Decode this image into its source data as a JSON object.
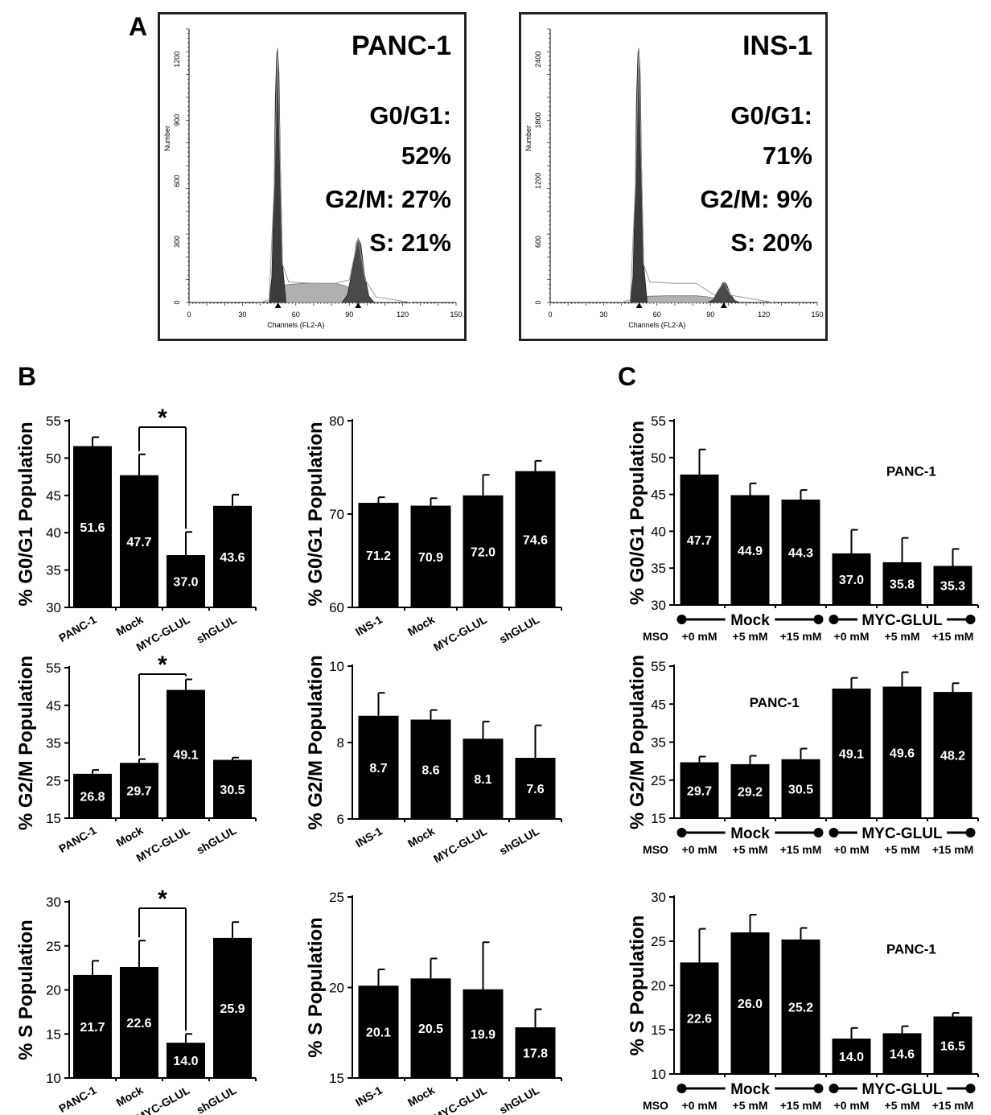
{
  "panels": {
    "A": "A",
    "B": "B",
    "C": "C"
  },
  "histograms": [
    {
      "title": "PANC-1",
      "lines": [
        "G0/G1:",
        "52%",
        "G2/M: 27%",
        "S: 21%"
      ],
      "xticks": [
        "0",
        "30",
        "60",
        "90",
        "120",
        "150"
      ],
      "yticks": [
        "0",
        "300",
        "600",
        "900",
        "1200"
      ],
      "xlabel": "Channels (FL2-A)",
      "ylabel": "Number",
      "ymax": 1350
    },
    {
      "title": "INS-1",
      "lines": [
        "G0/G1:",
        "71%",
        "G2/M: 9%",
        "S: 20%"
      ],
      "xticks": [
        "0",
        "30",
        "60",
        "90",
        "120",
        "150"
      ],
      "yticks": [
        "0",
        "600",
        "1200",
        "1800",
        "2400"
      ],
      "xlabel": "Channels (FL2-A)",
      "ylabel": "Number",
      "ymax": 2700
    }
  ],
  "chart_data": [
    {
      "id": "B1",
      "type": "bar",
      "ylabel": "% G0/G1 Population",
      "ylim": [
        30,
        55
      ],
      "yticks": [
        30,
        35,
        40,
        45,
        50,
        55
      ],
      "categories": [
        "PANC-1",
        "Mock",
        "MYC-GLUL",
        "shGLUL"
      ],
      "values": [
        51.6,
        47.7,
        37.0,
        43.6
      ],
      "errors": [
        1.2,
        2.8,
        3.1,
        1.5
      ],
      "significance": {
        "from": 1,
        "to": 2,
        "label": "*"
      }
    },
    {
      "id": "B2",
      "type": "bar",
      "ylabel": "% G0/G1 Population",
      "ylim": [
        60,
        80
      ],
      "yticks": [
        60,
        70,
        80
      ],
      "categories": [
        "INS-1",
        "Mock",
        "MYC-GLUL",
        "shGLUL"
      ],
      "values": [
        71.2,
        70.9,
        72.0,
        74.6
      ],
      "errors": [
        0.6,
        0.8,
        2.2,
        1.1
      ]
    },
    {
      "id": "C1",
      "type": "bar",
      "ylabel": "% G0/G1 Population",
      "ylim": [
        30,
        55
      ],
      "yticks": [
        30,
        35,
        40,
        45,
        50,
        55
      ],
      "categories": [
        "+0 mM",
        "+5 mM",
        "+15 mM",
        "+0 mM",
        "+5 mM",
        "+15 mM"
      ],
      "values": [
        47.7,
        44.9,
        44.3,
        37.0,
        35.8,
        35.3
      ],
      "errors": [
        3.4,
        1.6,
        1.3,
        3.2,
        3.3,
        2.3
      ],
      "annotation": "PANC-1",
      "groups": [
        {
          "label": "Mock",
          "start": 0,
          "end": 2
        },
        {
          "label": "MYC-GLUL",
          "start": 3,
          "end": 5
        }
      ],
      "row_label": "MSO"
    },
    {
      "id": "B3",
      "type": "bar",
      "ylabel": "% G2/M Population",
      "ylim": [
        15,
        55
      ],
      "yticks": [
        15,
        25,
        35,
        45,
        55
      ],
      "categories": [
        "PANC-1",
        "Mock",
        "MYC-GLUL",
        "shGLUL"
      ],
      "values": [
        26.8,
        29.7,
        49.1,
        30.5
      ],
      "errors": [
        1.0,
        1.0,
        2.8,
        0.6
      ],
      "significance": {
        "from": 1,
        "to": 2,
        "label": "*"
      }
    },
    {
      "id": "B4",
      "type": "bar",
      "ylabel": "% G2/M Population",
      "ylim": [
        6,
        10
      ],
      "yticks": [
        6,
        8,
        10
      ],
      "categories": [
        "INS-1",
        "Mock",
        "MYC-GLUL",
        "shGLUL"
      ],
      "values": [
        8.7,
        8.6,
        8.1,
        7.6
      ],
      "errors": [
        0.6,
        0.25,
        0.45,
        0.85
      ]
    },
    {
      "id": "C2",
      "type": "bar",
      "ylabel": "% G2/M Population",
      "ylim": [
        15,
        55
      ],
      "yticks": [
        15,
        25,
        35,
        45,
        55
      ],
      "categories": [
        "+0 mM",
        "+5 mM",
        "+15 mM",
        "+0 mM",
        "+5 mM",
        "+15 mM"
      ],
      "values": [
        29.7,
        29.2,
        30.5,
        49.1,
        49.6,
        48.2
      ],
      "errors": [
        1.5,
        2.2,
        2.8,
        2.8,
        3.8,
        2.3
      ],
      "annotation": "PANC-1",
      "groups": [
        {
          "label": "Mock",
          "start": 0,
          "end": 2
        },
        {
          "label": "MYC-GLUL",
          "start": 3,
          "end": 5
        }
      ],
      "row_label": "MSO"
    },
    {
      "id": "B5",
      "type": "bar",
      "ylabel": "% S Population",
      "ylim": [
        10,
        30
      ],
      "yticks": [
        10,
        15,
        20,
        25,
        30
      ],
      "categories": [
        "PANC-1",
        "Mock",
        "MYC-GLUL",
        "shGLUL"
      ],
      "values": [
        21.7,
        22.6,
        14.0,
        25.9
      ],
      "errors": [
        1.6,
        3.0,
        1.0,
        1.8
      ],
      "significance": {
        "from": 1,
        "to": 2,
        "label": "*"
      }
    },
    {
      "id": "B6",
      "type": "bar",
      "ylabel": "% S Population",
      "ylim": [
        15,
        25
      ],
      "yticks": [
        15,
        20,
        25
      ],
      "categories": [
        "INS-1",
        "Mock",
        "MYC-GLUL",
        "shGLUL"
      ],
      "values": [
        20.1,
        20.5,
        19.9,
        17.8
      ],
      "errors": [
        0.9,
        1.1,
        2.6,
        1.0
      ]
    },
    {
      "id": "C3",
      "type": "bar",
      "ylabel": "% S Population",
      "ylim": [
        10,
        30
      ],
      "yticks": [
        10,
        15,
        20,
        25,
        30
      ],
      "categories": [
        "+0 mM",
        "+5 mM",
        "+15 mM",
        "+0 mM",
        "+5 mM",
        "+15 mM"
      ],
      "values": [
        22.6,
        26.0,
        25.2,
        14.0,
        14.6,
        16.5
      ],
      "errors": [
        3.8,
        2.0,
        1.3,
        1.2,
        0.8,
        0.4
      ],
      "annotation": "PANC-1",
      "groups": [
        {
          "label": "Mock",
          "start": 0,
          "end": 2
        },
        {
          "label": "MYC-GLUL",
          "start": 3,
          "end": 5
        }
      ],
      "row_label": "MSO"
    }
  ]
}
